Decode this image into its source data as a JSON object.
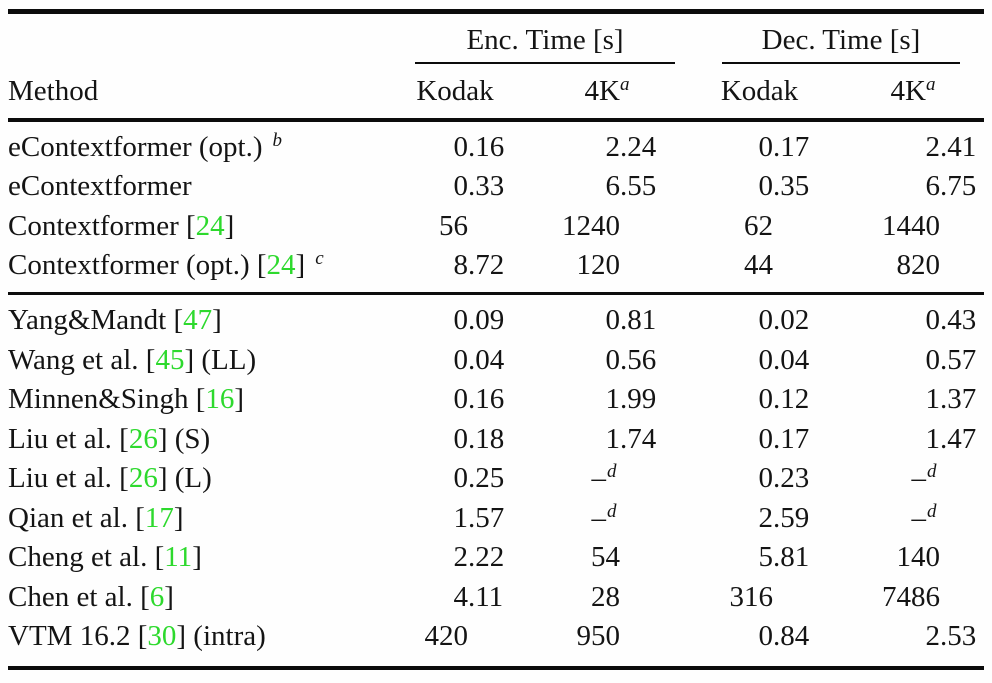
{
  "colors": {
    "citation_green": "#2dd92d",
    "text": "#141414",
    "rule": "#0c0c0c",
    "background": "#fefefe"
  },
  "glyphs": {
    "cite_open": "[",
    "cite_close": "]",
    "missing_value_dash": "–"
  },
  "header": {
    "method_label": "Method",
    "groups": [
      {
        "label": "Enc. Time [s]"
      },
      {
        "label": "Dec. Time [s]"
      }
    ],
    "columns": [
      {
        "label": "Kodak"
      },
      {
        "label": "4K",
        "sup": "a"
      },
      {
        "label": "Kodak"
      },
      {
        "label": "4K",
        "sup": "a"
      }
    ]
  },
  "body": {
    "groups": [
      {
        "rows": [
          {
            "method": [
              {
                "text": "eContextformer (opt.)"
              },
              {
                "sup": "b"
              }
            ],
            "cells": [
              {
                "i": "0",
                "f": ".16"
              },
              {
                "i": "2",
                "f": ".24"
              },
              {
                "i": "0",
                "f": ".17"
              },
              {
                "i": "2",
                "f": ".41"
              }
            ]
          },
          {
            "method": [
              {
                "text": "eContextformer"
              }
            ],
            "cells": [
              {
                "i": "0",
                "f": ".33"
              },
              {
                "i": "6",
                "f": ".55"
              },
              {
                "i": "0",
                "f": ".35"
              },
              {
                "i": "6",
                "f": ".75"
              }
            ]
          },
          {
            "method": [
              {
                "text": "Contextformer "
              },
              {
                "cite": "24"
              }
            ],
            "cells": [
              {
                "i": "56"
              },
              {
                "i": "1240"
              },
              {
                "i": "62"
              },
              {
                "i": "1440"
              }
            ]
          },
          {
            "method": [
              {
                "text": "Contextformer (opt.) "
              },
              {
                "cite": "24"
              },
              {
                "sup": "c"
              }
            ],
            "cells": [
              {
                "i": "8",
                "f": ".72"
              },
              {
                "i": "120"
              },
              {
                "i": "44"
              },
              {
                "i": "820"
              }
            ]
          }
        ]
      },
      {
        "rows": [
          {
            "method": [
              {
                "text": "Yang&Mandt "
              },
              {
                "cite": "47"
              }
            ],
            "cells": [
              {
                "i": "0",
                "f": ".09"
              },
              {
                "i": "0",
                "f": ".81"
              },
              {
                "i": "0",
                "f": ".02"
              },
              {
                "i": "0",
                "f": ".43"
              }
            ]
          },
          {
            "method": [
              {
                "text": "Wang et al. "
              },
              {
                "cite": "45"
              },
              {
                "text": " (LL)"
              }
            ],
            "cells": [
              {
                "i": "0",
                "f": ".04"
              },
              {
                "i": "0",
                "f": ".56"
              },
              {
                "i": "0",
                "f": ".04"
              },
              {
                "i": "0",
                "f": ".57"
              }
            ]
          },
          {
            "method": [
              {
                "text": "Minnen&Singh "
              },
              {
                "cite": "16"
              }
            ],
            "cells": [
              {
                "i": "0",
                "f": ".16"
              },
              {
                "i": "1",
                "f": ".99"
              },
              {
                "i": "0",
                "f": ".12"
              },
              {
                "i": "1",
                "f": ".37"
              }
            ]
          },
          {
            "method": [
              {
                "text": "Liu et al. "
              },
              {
                "cite": "26"
              },
              {
                "text": " (S)"
              }
            ],
            "cells": [
              {
                "i": "0",
                "f": ".18"
              },
              {
                "i": "1",
                "f": ".74"
              },
              {
                "i": "0",
                "f": ".17"
              },
              {
                "i": "1",
                "f": ".47"
              }
            ]
          },
          {
            "method": [
              {
                "text": "Liu et al. "
              },
              {
                "cite": "26"
              },
              {
                "text": " (L)"
              }
            ],
            "cells": [
              {
                "i": "0",
                "f": ".25"
              },
              {
                "i": "–",
                "s": "d"
              },
              {
                "i": "0",
                "f": ".23"
              },
              {
                "i": "–",
                "s": "d"
              }
            ]
          },
          {
            "method": [
              {
                "text": "Qian et al. "
              },
              {
                "cite": "17"
              }
            ],
            "cells": [
              {
                "i": "1",
                "f": ".57"
              },
              {
                "i": "–",
                "s": "d"
              },
              {
                "i": "2",
                "f": ".59"
              },
              {
                "i": "–",
                "s": "d"
              }
            ]
          },
          {
            "method": [
              {
                "text": "Cheng et al. "
              },
              {
                "cite": "11"
              }
            ],
            "cells": [
              {
                "i": "2",
                "f": ".22"
              },
              {
                "i": "54"
              },
              {
                "i": "5",
                "f": ".81"
              },
              {
                "i": "140"
              }
            ]
          },
          {
            "method": [
              {
                "text": "Chen et al. "
              },
              {
                "cite": "6"
              }
            ],
            "cells": [
              {
                "i": "4",
                "f": ".11"
              },
              {
                "i": "28"
              },
              {
                "i": "316"
              },
              {
                "i": "7486"
              }
            ]
          },
          {
            "method": [
              {
                "text": "VTM 16.2 "
              },
              {
                "cite": "30"
              },
              {
                "text": " (intra)"
              }
            ],
            "cells": [
              {
                "i": "420"
              },
              {
                "i": "950"
              },
              {
                "i": "0",
                "f": ".84"
              },
              {
                "i": "2",
                "f": ".53"
              }
            ]
          }
        ]
      }
    ]
  }
}
